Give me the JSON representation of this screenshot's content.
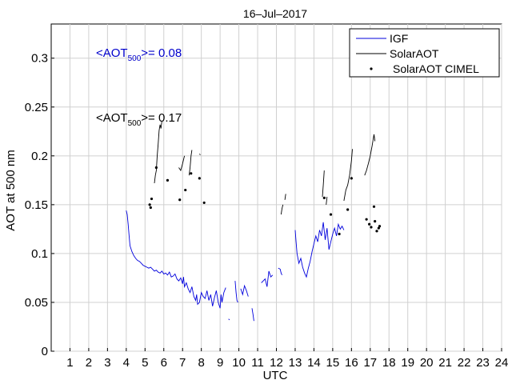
{
  "chart_data": {
    "type": "line",
    "title": "16–Jul–2017",
    "xlabel": "UTC",
    "ylabel": "AOT at 500 nm",
    "xlim": [
      0,
      24
    ],
    "ylim": [
      0,
      0.335
    ],
    "xticks": [
      1,
      2,
      3,
      4,
      5,
      6,
      7,
      8,
      9,
      10,
      11,
      12,
      13,
      14,
      15,
      16,
      17,
      18,
      19,
      20,
      21,
      22,
      23,
      24
    ],
    "yticks": [
      0,
      0.05,
      0.1,
      0.15,
      0.2,
      0.25,
      0.3
    ],
    "ytick_labels": [
      "0",
      "0.05",
      "0.1",
      "0.15",
      "0.2",
      "0.25",
      "0.3"
    ],
    "grid": true,
    "legend": {
      "placement": "top-right",
      "entries": [
        "IGF",
        "SolarAOT",
        "SolarAOT CIMEL"
      ]
    },
    "annotations": [
      {
        "prefix": "<AOT",
        "sub": "500",
        "suffix": ">= 0.08",
        "color": "#0000cc"
      },
      {
        "prefix": "<AOT",
        "sub": "500",
        "suffix": ">= 0.17",
        "color": "#000000"
      }
    ],
    "series": [
      {
        "name": "IGF",
        "style": "line",
        "color": "#0000dd",
        "segments": [
          [
            [
              4.0,
              0.144
            ],
            [
              4.05,
              0.14
            ],
            [
              4.1,
              0.13
            ],
            [
              4.15,
              0.118
            ],
            [
              4.2,
              0.108
            ],
            [
              4.3,
              0.102
            ],
            [
              4.4,
              0.098
            ],
            [
              4.5,
              0.095
            ],
            [
              4.6,
              0.093
            ],
            [
              4.7,
              0.092
            ],
            [
              4.8,
              0.09
            ],
            [
              4.9,
              0.088
            ],
            [
              5.0,
              0.087
            ],
            [
              5.1,
              0.086
            ],
            [
              5.2,
              0.085
            ],
            [
              5.3,
              0.086
            ],
            [
              5.4,
              0.084
            ],
            [
              5.5,
              0.082
            ],
            [
              5.6,
              0.083
            ],
            [
              5.7,
              0.081
            ],
            [
              5.8,
              0.08
            ],
            [
              5.9,
              0.082
            ],
            [
              6.0,
              0.079
            ],
            [
              6.1,
              0.08
            ],
            [
              6.2,
              0.078
            ],
            [
              6.3,
              0.081
            ],
            [
              6.4,
              0.076
            ],
            [
              6.5,
              0.077
            ],
            [
              6.6,
              0.079
            ],
            [
              6.7,
              0.074
            ],
            [
              6.8,
              0.072
            ],
            [
              6.9,
              0.075
            ],
            [
              7.0,
              0.069
            ],
            [
              7.05,
              0.076
            ],
            [
              7.1,
              0.066
            ],
            [
              7.2,
              0.07
            ],
            [
              7.3,
              0.064
            ],
            [
              7.4,
              0.06
            ],
            [
              7.5,
              0.066
            ],
            [
              7.6,
              0.056
            ],
            [
              7.7,
              0.052
            ],
            [
              7.75,
              0.058
            ],
            [
              7.8,
              0.048
            ],
            [
              7.9,
              0.05
            ],
            [
              8.0,
              0.06
            ],
            [
              8.1,
              0.056
            ],
            [
              8.2,
              0.054
            ],
            [
              8.3,
              0.062
            ],
            [
              8.4,
              0.052
            ],
            [
              8.5,
              0.058
            ],
            [
              8.6,
              0.046
            ],
            [
              8.7,
              0.055
            ],
            [
              8.8,
              0.062
            ],
            [
              8.9,
              0.05
            ],
            [
              9.0,
              0.044
            ],
            [
              9.05,
              0.058
            ],
            [
              9.1,
              0.05
            ],
            [
              9.2,
              0.06
            ],
            [
              9.3,
              0.065
            ]
          ],
          [
            [
              9.45,
              0.033
            ],
            [
              9.5,
              0.032
            ]
          ],
          [
            [
              9.8,
              0.072
            ],
            [
              9.85,
              0.06
            ],
            [
              9.9,
              0.052
            ],
            [
              9.95,
              0.05
            ]
          ],
          [
            [
              10.1,
              0.064
            ],
            [
              10.2,
              0.058
            ],
            [
              10.3,
              0.067
            ],
            [
              10.4,
              0.062
            ],
            [
              10.5,
              0.056
            ]
          ],
          [
            [
              10.7,
              0.044
            ],
            [
              10.75,
              0.038
            ],
            [
              10.8,
              0.031
            ]
          ],
          [
            [
              11.2,
              0.07
            ],
            [
              11.3,
              0.072
            ],
            [
              11.4,
              0.074
            ],
            [
              11.5,
              0.066
            ],
            [
              11.6,
              0.082
            ],
            [
              11.7,
              0.076
            ],
            [
              11.8,
              0.078
            ]
          ],
          [
            [
              12.1,
              0.085
            ],
            [
              12.2,
              0.084
            ],
            [
              12.25,
              0.08
            ],
            [
              12.3,
              0.078
            ]
          ],
          [
            [
              13.0,
              0.124
            ],
            [
              13.05,
              0.112
            ],
            [
              13.1,
              0.1
            ],
            [
              13.2,
              0.09
            ],
            [
              13.3,
              0.095
            ],
            [
              13.4,
              0.086
            ],
            [
              13.5,
              0.08
            ],
            [
              13.6,
              0.076
            ],
            [
              13.7,
              0.085
            ],
            [
              13.8,
              0.092
            ],
            [
              13.9,
              0.102
            ],
            [
              14.0,
              0.11
            ],
            [
              14.1,
              0.118
            ],
            [
              14.2,
              0.112
            ],
            [
              14.3,
              0.124
            ],
            [
              14.4,
              0.118
            ],
            [
              14.5,
              0.132
            ],
            [
              14.6,
              0.114
            ],
            [
              14.7,
              0.126
            ],
            [
              14.8,
              0.104
            ],
            [
              14.9,
              0.112
            ],
            [
              15.0,
              0.12
            ],
            [
              15.1,
              0.126
            ],
            [
              15.2,
              0.118
            ],
            [
              15.3,
              0.13
            ],
            [
              15.4,
              0.125
            ],
            [
              15.5,
              0.128
            ],
            [
              15.6,
              0.124
            ]
          ]
        ]
      },
      {
        "name": "SolarAOT",
        "style": "line",
        "color": "#000000",
        "segments": [
          [
            [
              5.5,
              0.172
            ],
            [
              5.55,
              0.18
            ],
            [
              5.6,
              0.185
            ],
            [
              5.65,
              0.2
            ],
            [
              5.7,
              0.212
            ],
            [
              5.75,
              0.226
            ],
            [
              5.8,
              0.232
            ],
            [
              5.85,
              0.228
            ],
            [
              5.9,
              0.236
            ]
          ],
          [
            [
              6.8,
              0.188
            ],
            [
              6.9,
              0.185
            ],
            [
              7.0,
              0.192
            ],
            [
              7.1,
              0.2
            ]
          ],
          [
            [
              7.35,
              0.18
            ],
            [
              7.4,
              0.188
            ],
            [
              7.45,
              0.2
            ],
            [
              7.5,
              0.206
            ]
          ],
          [
            [
              7.9,
              0.202
            ],
            [
              7.95,
              0.201
            ]
          ],
          [
            [
              12.25,
              0.14
            ],
            [
              12.3,
              0.146
            ],
            [
              12.35,
              0.15
            ]
          ],
          [
            [
              12.45,
              0.155
            ],
            [
              12.5,
              0.161
            ]
          ],
          [
            [
              14.45,
              0.158
            ],
            [
              14.5,
              0.17
            ],
            [
              14.55,
              0.185
            ]
          ],
          [
            [
              14.65,
              0.15
            ],
            [
              14.7,
              0.158
            ]
          ],
          [
            [
              15.6,
              0.154
            ],
            [
              15.7,
              0.165
            ],
            [
              15.8,
              0.17
            ],
            [
              15.9,
              0.18
            ],
            [
              16.0,
              0.195
            ],
            [
              16.05,
              0.207
            ]
          ],
          [
            [
              16.7,
              0.18
            ],
            [
              16.8,
              0.185
            ],
            [
              16.9,
              0.192
            ],
            [
              17.0,
              0.2
            ],
            [
              17.1,
              0.21
            ],
            [
              17.2,
              0.222
            ],
            [
              17.25,
              0.215
            ]
          ]
        ]
      },
      {
        "name": "SolarAOT CIMEL",
        "style": "points",
        "color": "#000000",
        "points": [
          [
            5.25,
            0.15
          ],
          [
            5.3,
            0.147
          ],
          [
            5.35,
            0.156
          ],
          [
            5.6,
            0.188
          ],
          [
            6.2,
            0.175
          ],
          [
            6.85,
            0.155
          ],
          [
            7.15,
            0.165
          ],
          [
            7.45,
            0.182
          ],
          [
            7.9,
            0.177
          ],
          [
            8.15,
            0.152
          ],
          [
            14.55,
            0.157
          ],
          [
            14.9,
            0.14
          ],
          [
            15.35,
            0.12
          ],
          [
            15.8,
            0.145
          ],
          [
            16.0,
            0.177
          ],
          [
            16.8,
            0.135
          ],
          [
            16.95,
            0.13
          ],
          [
            17.05,
            0.127
          ],
          [
            17.2,
            0.148
          ],
          [
            17.25,
            0.133
          ],
          [
            17.35,
            0.123
          ],
          [
            17.45,
            0.126
          ],
          [
            17.5,
            0.128
          ]
        ]
      }
    ]
  }
}
